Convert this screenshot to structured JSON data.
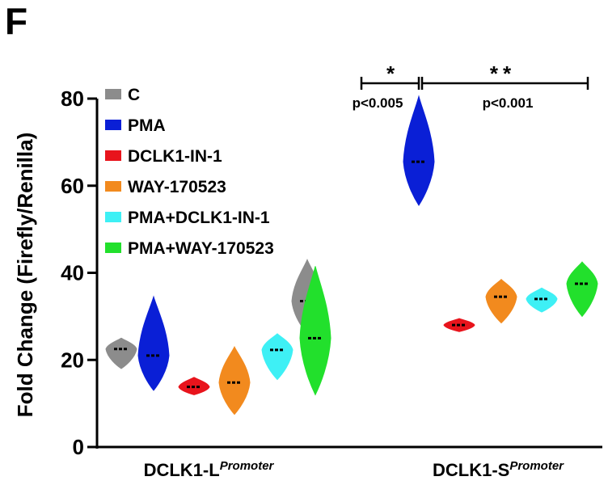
{
  "panel_label": "F",
  "chart_data": {
    "type": "violin",
    "title": "",
    "ylabel": "Fold Change (Firefly/Renilla)",
    "xlabel": "",
    "ylim": [
      0,
      80
    ],
    "yticks": [
      0,
      20,
      40,
      60,
      80
    ],
    "legend_position": "top-left",
    "categories": [
      {
        "name": "DCLK1-L",
        "superscript": "Promoter"
      },
      {
        "name": "DCLK1-S",
        "superscript": "Promoter"
      }
    ],
    "series": [
      {
        "name": "C",
        "color": "#8c8c8c",
        "medians": [
          22.5,
          33.5
        ],
        "ranges": [
          [
            18,
            25
          ],
          [
            26,
            43
          ]
        ]
      },
      {
        "name": "PMA",
        "color": "#0a1fd6",
        "medians": [
          21,
          65.5
        ],
        "ranges": [
          [
            13,
            34.5
          ],
          [
            55.5,
            80.5
          ]
        ]
      },
      {
        "name": "DCLK1-IN-1",
        "color": "#e8141c",
        "medians": [
          13.8,
          28
        ],
        "ranges": [
          [
            12,
            16
          ],
          [
            26.5,
            29.5
          ]
        ]
      },
      {
        "name": "WAY-170523",
        "color": "#f28a1e",
        "medians": [
          14.8,
          34.5
        ],
        "ranges": [
          [
            7.5,
            23
          ],
          [
            28.5,
            38.5
          ]
        ]
      },
      {
        "name": "PMA+DCLK1-IN-1",
        "color": "#3ef0f5",
        "medians": [
          22.3,
          34
        ],
        "ranges": [
          [
            15.5,
            26
          ],
          [
            31,
            36.5
          ]
        ]
      },
      {
        "name": "PMA+WAY-170523",
        "color": "#22e02c",
        "medians": [
          25,
          37.5
        ],
        "ranges": [
          [
            12,
            41.5
          ],
          [
            30,
            42.5
          ]
        ]
      }
    ],
    "annotations": [
      {
        "star": "*",
        "p": "p<0.005"
      },
      {
        "star": "**",
        "p": "p<0.001"
      }
    ]
  }
}
